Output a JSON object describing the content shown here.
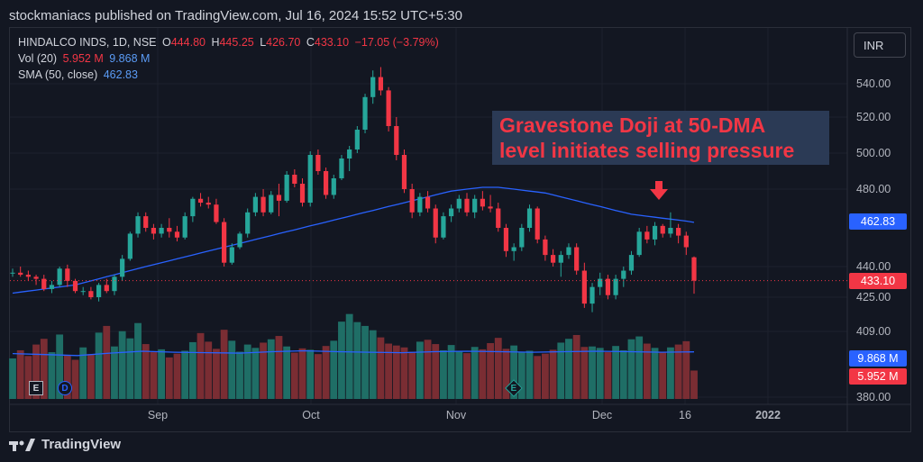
{
  "publisher_line": "stockmaniacs published on TradingView.com, Jul 16, 2024 15:52 UTC+5:30",
  "legend": {
    "symbol": "HINDALCO INDS, 1D, NSE",
    "o_label": "O",
    "o_value": "444.80",
    "h_label": "H",
    "h_value": "445.25",
    "l_label": "L",
    "l_value": "426.70",
    "c_label": "C",
    "c_value": "433.10",
    "change": "−17.05 (−3.79%)",
    "vol_label": "Vol (20)",
    "vol_value": "5.952 M",
    "vol_ma_value": "9.868 M",
    "sma_label": "SMA (50, close)",
    "sma_value": "462.83"
  },
  "currency_button": "INR",
  "annotation": {
    "line1": "Gravestone Doji at 50-DMA",
    "line2": "level initiates selling pressure"
  },
  "price_tags": {
    "sma": "462.83",
    "close": "433.10",
    "vol_ma": "9.868 M",
    "vol": "5.952 M"
  },
  "events": {
    "earnings": "E",
    "dividend": "D"
  },
  "brand": "TradingView",
  "colors": {
    "up": "#26a69a",
    "down": "#f23645",
    "sma": "#2962ff",
    "bg": "#131722"
  },
  "chart_data": {
    "type": "candlestick",
    "title": "HINDALCO INDS, 1D, NSE",
    "price_axis_ticks": [
      "540.00",
      "520.00",
      "500.00",
      "480.00",
      "440.00",
      "425.00",
      "409.00",
      "380.00"
    ],
    "x_axis_labels": [
      "Sep",
      "Oct",
      "Nov",
      "Dec",
      "16",
      "2022"
    ],
    "grid": true,
    "candles": [
      [
        437,
        439,
        435,
        437
      ],
      [
        437,
        440,
        435,
        436
      ],
      [
        436,
        438,
        433,
        435
      ],
      [
        435,
        436,
        431,
        434
      ],
      [
        434,
        436,
        428,
        429
      ],
      [
        429,
        433,
        427,
        431
      ],
      [
        431,
        440,
        430,
        439
      ],
      [
        439,
        441,
        430,
        433
      ],
      [
        433,
        434,
        427,
        428
      ],
      [
        428,
        430,
        426,
        428
      ],
      [
        428,
        430,
        424,
        425
      ],
      [
        425,
        432,
        423,
        431
      ],
      [
        431,
        434,
        427,
        428
      ],
      [
        428,
        436,
        426,
        435
      ],
      [
        435,
        446,
        433,
        444
      ],
      [
        444,
        458,
        443,
        457
      ],
      [
        457,
        468,
        455,
        466
      ],
      [
        466,
        468,
        458,
        460
      ],
      [
        460,
        462,
        454,
        457
      ],
      [
        457,
        462,
        455,
        460
      ],
      [
        460,
        465,
        455,
        458
      ],
      [
        458,
        461,
        453,
        455
      ],
      [
        455,
        468,
        454,
        466
      ],
      [
        466,
        476,
        463,
        475
      ],
      [
        475,
        478,
        471,
        473
      ],
      [
        473,
        476,
        470,
        472
      ],
      [
        472,
        475,
        462,
        463
      ],
      [
        463,
        465,
        440,
        442
      ],
      [
        442,
        452,
        441,
        450
      ],
      [
        450,
        458,
        449,
        457
      ],
      [
        457,
        470,
        455,
        468
      ],
      [
        468,
        478,
        466,
        476
      ],
      [
        476,
        480,
        466,
        468
      ],
      [
        468,
        479,
        467,
        477
      ],
      [
        477,
        483,
        466,
        474
      ],
      [
        474,
        490,
        473,
        488
      ],
      [
        488,
        491,
        481,
        483
      ],
      [
        483,
        486,
        471,
        473
      ],
      [
        473,
        501,
        471,
        499
      ],
      [
        499,
        502,
        488,
        490
      ],
      [
        490,
        492,
        475,
        477
      ],
      [
        477,
        488,
        475,
        486
      ],
      [
        486,
        499,
        485,
        497
      ],
      [
        497,
        504,
        490,
        502
      ],
      [
        502,
        515,
        500,
        513
      ],
      [
        513,
        534,
        511,
        532
      ],
      [
        532,
        548,
        528,
        544
      ],
      [
        544,
        550,
        533,
        536
      ],
      [
        536,
        538,
        512,
        515
      ],
      [
        515,
        520,
        496,
        499
      ],
      [
        499,
        502,
        478,
        480
      ],
      [
        480,
        483,
        465,
        468
      ],
      [
        468,
        478,
        466,
        476
      ],
      [
        476,
        479,
        468,
        470
      ],
      [
        470,
        472,
        452,
        455
      ],
      [
        455,
        468,
        454,
        466
      ],
      [
        466,
        472,
        463,
        470
      ],
      [
        470,
        477,
        468,
        475
      ],
      [
        475,
        478,
        466,
        468
      ],
      [
        468,
        477,
        465,
        475
      ],
      [
        475,
        479,
        469,
        471
      ],
      [
        471,
        477,
        468,
        470
      ],
      [
        470,
        473,
        458,
        460
      ],
      [
        460,
        462,
        445,
        448
      ],
      [
        448,
        452,
        443,
        450
      ],
      [
        450,
        462,
        448,
        460
      ],
      [
        460,
        472,
        458,
        470
      ],
      [
        470,
        471,
        452,
        454
      ],
      [
        454,
        456,
        443,
        446
      ],
      [
        446,
        449,
        440,
        442
      ],
      [
        442,
        448,
        435,
        446
      ],
      [
        446,
        452,
        444,
        450
      ],
      [
        450,
        452,
        436,
        438
      ],
      [
        438,
        442,
        420,
        422
      ],
      [
        422,
        432,
        418,
        430
      ],
      [
        430,
        437,
        426,
        434
      ],
      [
        434,
        436,
        424,
        426
      ],
      [
        426,
        436,
        424,
        434
      ],
      [
        434,
        440,
        430,
        438
      ],
      [
        438,
        448,
        436,
        446
      ],
      [
        446,
        460,
        445,
        458
      ],
      [
        458,
        461,
        452,
        454
      ],
      [
        454,
        463,
        451,
        461
      ],
      [
        461,
        462,
        455,
        457
      ],
      [
        457,
        468,
        455,
        460
      ],
      [
        460,
        462,
        452,
        456
      ],
      [
        456,
        458,
        446,
        450
      ],
      [
        444.8,
        445.25,
        426.7,
        433.1
      ]
    ],
    "volume_million": [
      8.5,
      10.2,
      9.0,
      11.4,
      12.6,
      9.8,
      13.5,
      9.1,
      8.2,
      10.8,
      9.4,
      13.9,
      15.3,
      11.0,
      14.2,
      12.7,
      15.9,
      11.5,
      9.8,
      10.4,
      8.7,
      9.5,
      10.1,
      11.9,
      13.8,
      12.0,
      10.5,
      14.5,
      12.2,
      9.9,
      11.4,
      10.7,
      11.8,
      12.5,
      13.2,
      11.0,
      9.7,
      10.6,
      10.3,
      9.4,
      11.1,
      12.2,
      16.2,
      17.8,
      16.1,
      15.3,
      14.4,
      12.9,
      11.6,
      11.2,
      10.8,
      9.9,
      12.0,
      12.4,
      11.5,
      10.2,
      11.3,
      10.1,
      9.6,
      10.9,
      10.4,
      11.7,
      12.8,
      10.5,
      11.2,
      9.9,
      10.1,
      9.0,
      9.5,
      10.3,
      11.8,
      12.6,
      13.4,
      10.9,
      11.0,
      10.7,
      9.8,
      11.1,
      10.2,
      12.5,
      13.1,
      11.6,
      10.7,
      9.9,
      10.8,
      11.4,
      12.1,
      5.952
    ],
    "volume_ma_million": [
      9.5,
      9.3,
      9.1,
      9.6,
      10.0,
      9.8,
      9.7,
      9.6,
      9.9,
      10.1,
      9.9,
      9.8,
      9.7,
      9.9,
      10.0,
      9.9,
      9.8,
      9.9,
      10.0,
      9.9,
      9.8,
      9.868
    ],
    "sma50": [
      427,
      427.5,
      428,
      428.5,
      429,
      429.5,
      430,
      430.5,
      431,
      432,
      433,
      434,
      435,
      436,
      437,
      438,
      439,
      440,
      441,
      442,
      443,
      444,
      445,
      446,
      447,
      448,
      449,
      450,
      451,
      452,
      453,
      454,
      455,
      456,
      457,
      458,
      459,
      460,
      461,
      462,
      463,
      464,
      465,
      466,
      467,
      468,
      469,
      470,
      471,
      472,
      473,
      474,
      475,
      476,
      477,
      478,
      479,
      479.5,
      480,
      480.5,
      481,
      481,
      481,
      480.5,
      480,
      479.5,
      479,
      478.5,
      478,
      477,
      476,
      475,
      474,
      473,
      472,
      471,
      470,
      469,
      468,
      467,
      466.5,
      466,
      465.5,
      465,
      464.5,
      464,
      463.5,
      462.83
    ]
  }
}
